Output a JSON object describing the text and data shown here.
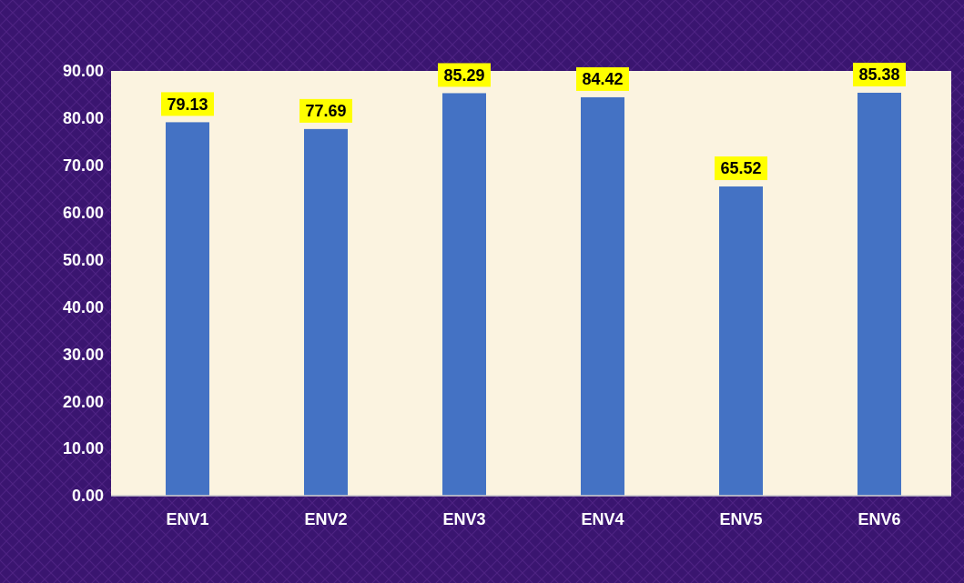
{
  "chart_data": {
    "type": "bar",
    "categories": [
      "ENV1",
      "ENV2",
      "ENV3",
      "ENV4",
      "ENV5",
      "ENV6"
    ],
    "values": [
      79.13,
      77.69,
      85.29,
      84.42,
      65.52,
      85.38
    ],
    "color": "#4472c4",
    "ylim": [
      0,
      90
    ],
    "yticks": [
      {
        "value": 0,
        "label": "0.00"
      },
      {
        "value": 10,
        "label": "10.00"
      },
      {
        "value": 20,
        "label": "20.00"
      },
      {
        "value": 30,
        "label": "30.00"
      },
      {
        "value": 40,
        "label": "40.00"
      },
      {
        "value": 50,
        "label": "50.00"
      },
      {
        "value": 60,
        "label": "60.00"
      },
      {
        "value": 70,
        "label": "70.00"
      },
      {
        "value": 80,
        "label": "80.00"
      },
      {
        "value": 90,
        "label": "90.00"
      }
    ],
    "data_labels": true
  }
}
